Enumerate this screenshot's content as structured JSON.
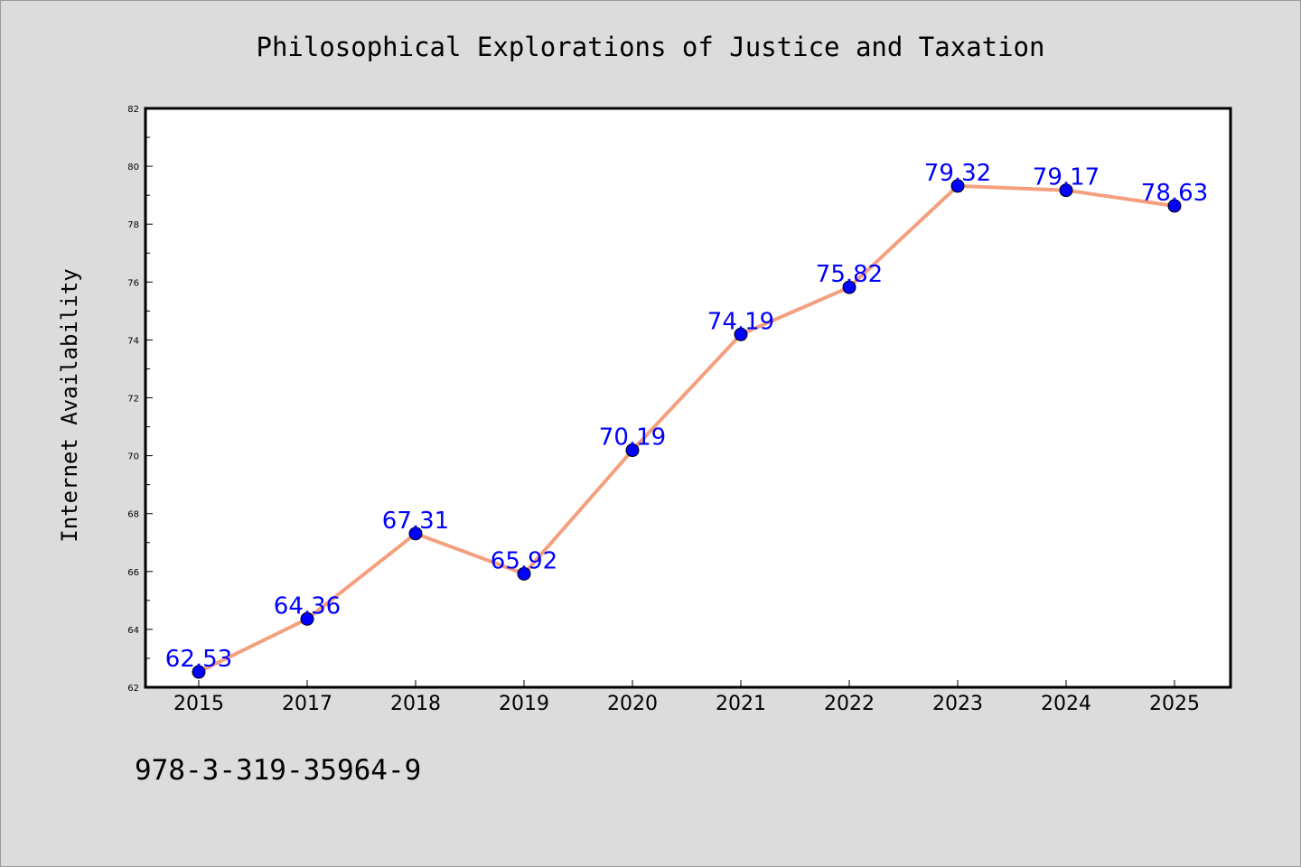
{
  "chart_data": {
    "type": "line",
    "title": "Philosophical Explorations of Justice and Taxation",
    "xlabel": "",
    "ylabel": "Internet Availability",
    "categories": [
      "2015",
      "2017",
      "2018",
      "2019",
      "2020",
      "2021",
      "2022",
      "2023",
      "2024",
      "2025"
    ],
    "series": [
      {
        "values": [
          62.53,
          64.36,
          67.31,
          65.92,
          70.19,
          74.19,
          75.82,
          79.32,
          79.17,
          78.63
        ],
        "labels": [
          "62.53",
          "64.36",
          "67.31",
          "65.92",
          "70.19",
          "74.19",
          "75.82",
          "79.32",
          "79.17",
          "78.63"
        ]
      }
    ],
    "ylim": [
      62,
      82
    ],
    "yticks": [
      "62",
      "64",
      "66",
      "68",
      "70",
      "72",
      "74",
      "76",
      "78",
      "80",
      "82"
    ],
    "grid": false,
    "legend": "none",
    "colors": {
      "line": "#f4a07e",
      "marker": "#0000ff",
      "data_label": "#0000ff",
      "plot_background": "#ffffff",
      "figure_background": "#dcdcdc"
    }
  },
  "footer": {
    "code": "978-3-319-35964-9"
  }
}
